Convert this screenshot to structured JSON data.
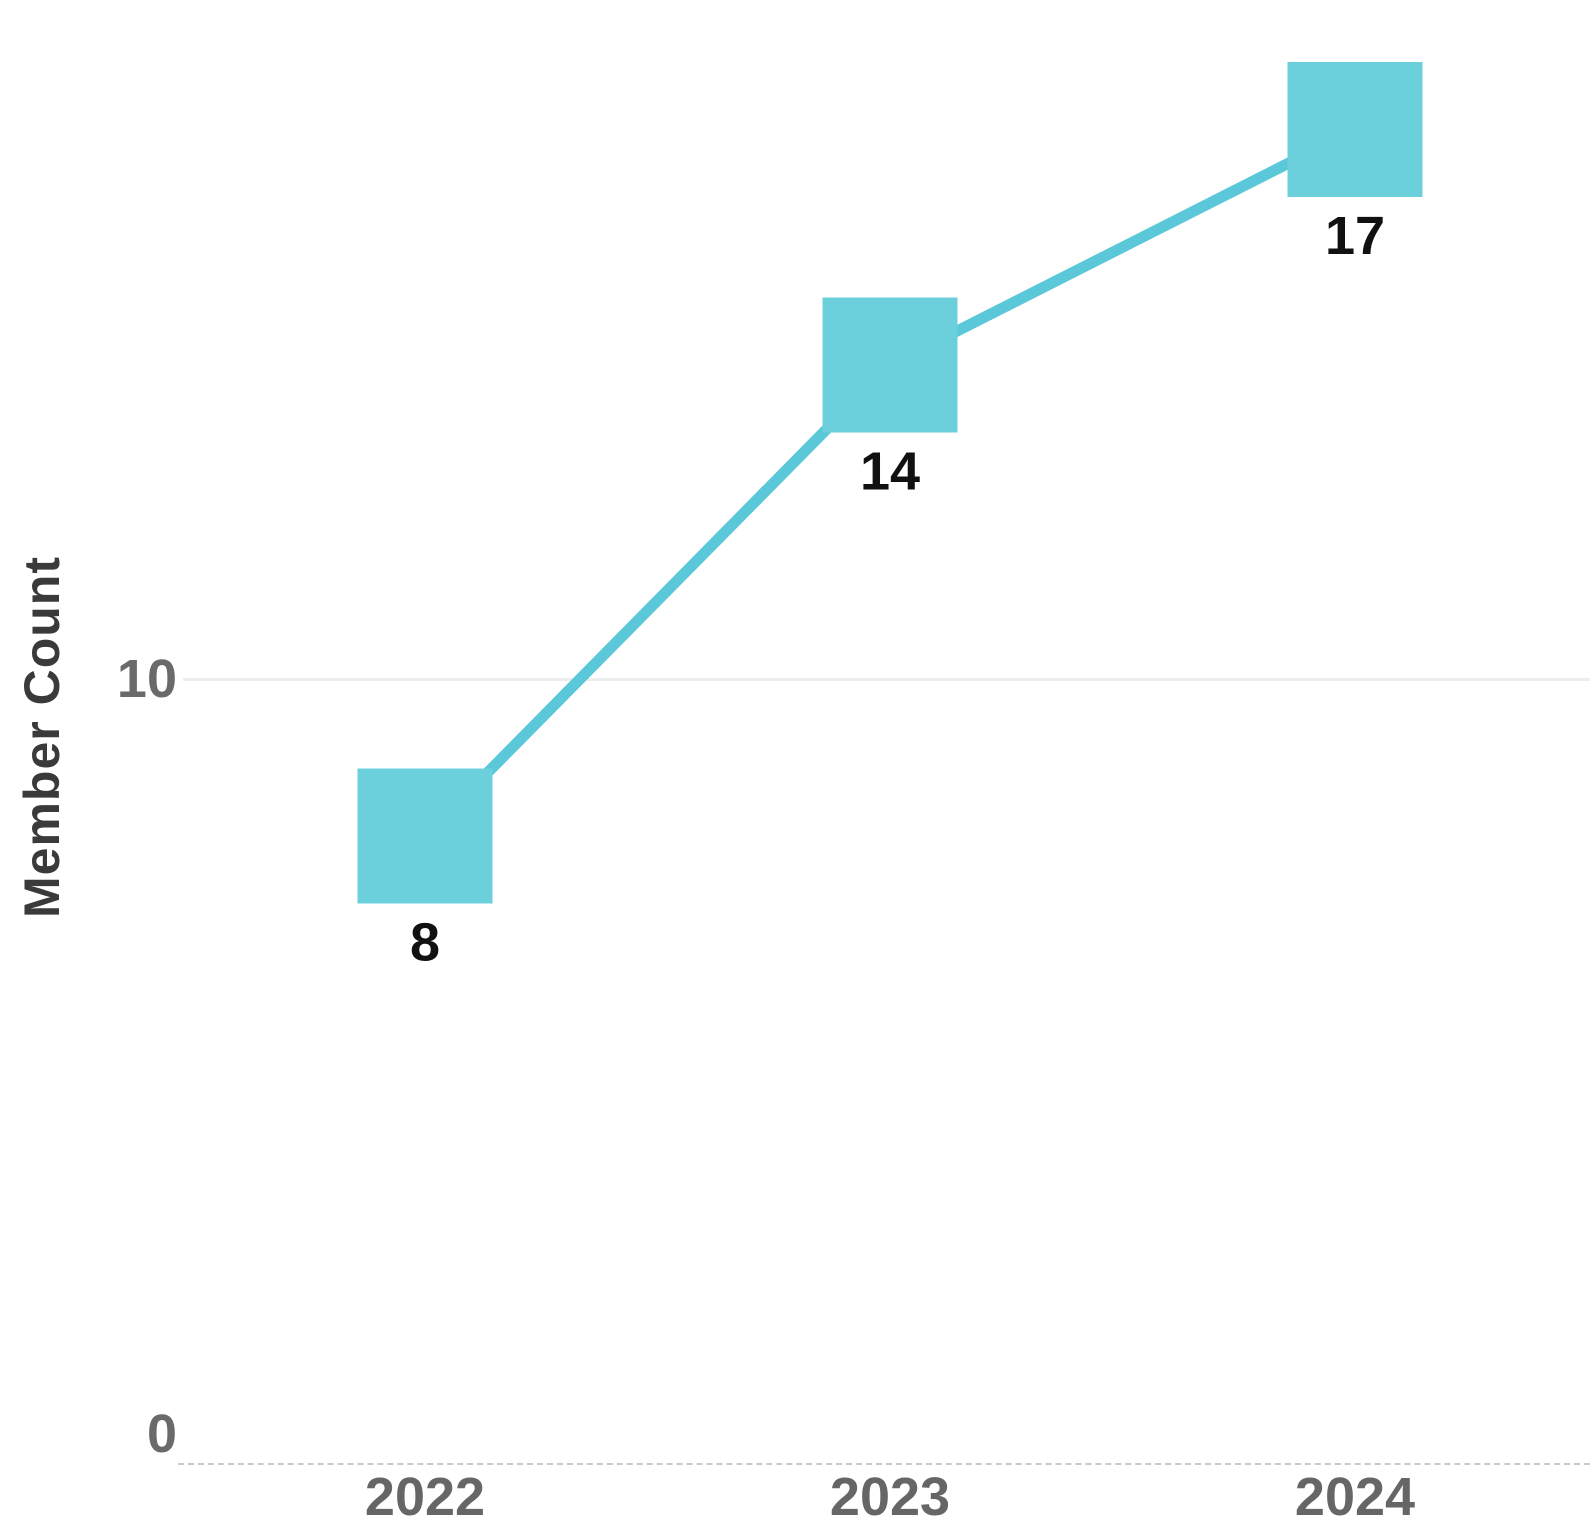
{
  "chart_data": {
    "type": "line",
    "title": "",
    "categories": [
      "2022",
      "2023",
      "2024"
    ],
    "values": [
      8,
      14,
      17
    ],
    "series": [
      {
        "name": "Member Count",
        "values": [
          8,
          14,
          17
        ]
      }
    ],
    "xlabel": "",
    "ylabel": "Member Count",
    "ylim": [
      0,
      19
    ],
    "yticks": [
      {
        "value": 0,
        "label": "0"
      },
      {
        "value": 10,
        "label": "10"
      }
    ],
    "grid": "single light horizontal gridline at y=10; dashed light baseline at y=0",
    "legend": "none",
    "marker_shape": "square",
    "data_labels_visible": true,
    "colors": {
      "line": "#5ac8d8",
      "marker": "#6ccfdc",
      "value_label": "#111111",
      "axis_text": "#666666",
      "ylabel_text": "#3a3a3a",
      "gridline": "#ededed",
      "axis_line": "#c9c9c9"
    }
  }
}
